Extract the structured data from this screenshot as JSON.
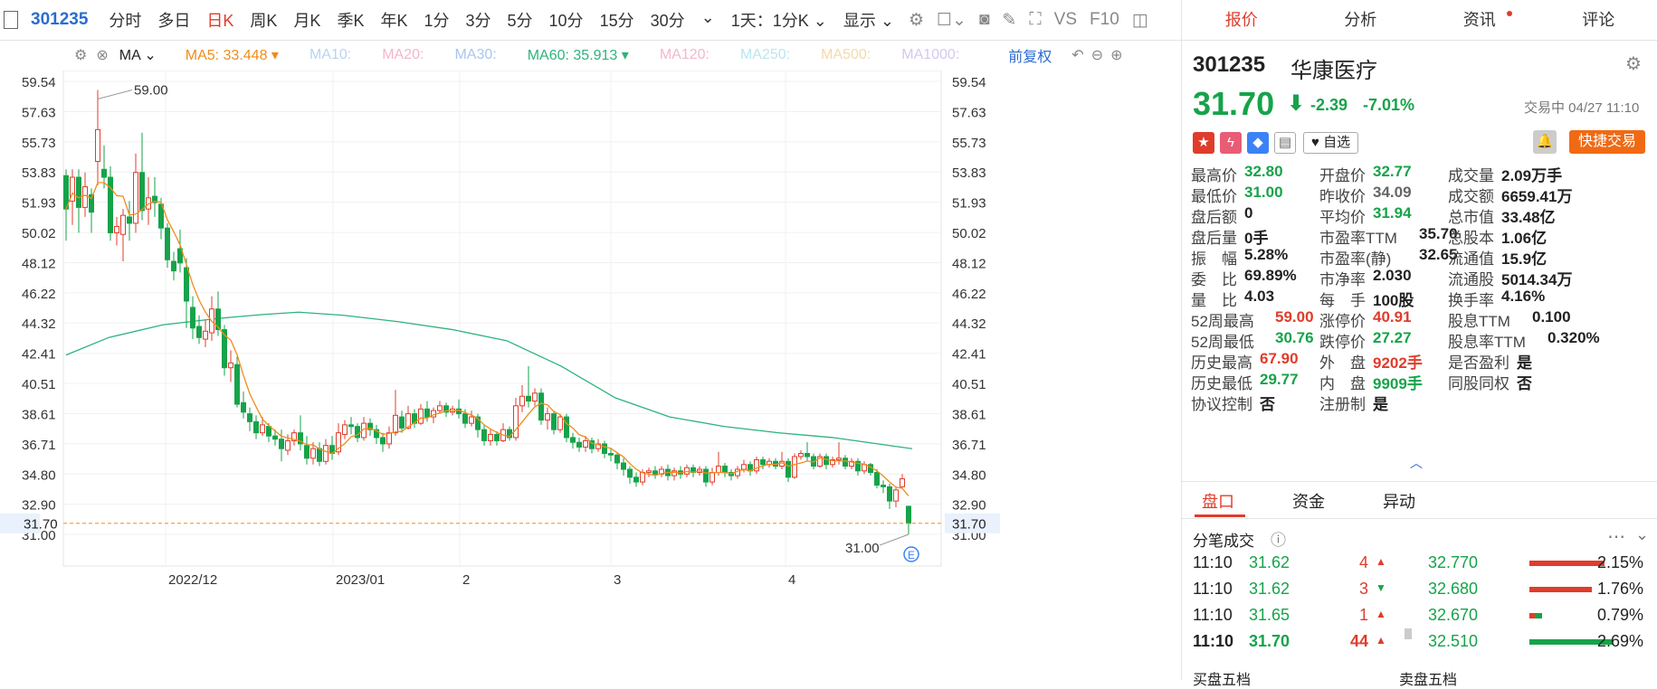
{
  "toolbar": {
    "code": "301235",
    "periods": [
      "分时",
      "多日",
      "日K",
      "周K",
      "月K",
      "季K",
      "年K",
      "1分",
      "3分",
      "5分",
      "10分",
      "15分",
      "30分"
    ],
    "active_period": "日K",
    "compare": "1天：1分K",
    "display": "显示",
    "vs": "VS",
    "f10": "F10"
  },
  "ma_row": {
    "title": "MA",
    "ma5": "MA5: 33.448",
    "ma10": "MA10:",
    "ma20": "MA20:",
    "ma30": "MA30:",
    "ma60": "MA60: 35.913",
    "ma120": "MA120:",
    "ma250": "MA250:",
    "ma500": "MA500:",
    "ma1000": "MA1000:",
    "adjust": "前复权",
    "colors": {
      "ma5": "#f08c1a",
      "ma60": "#2db37c",
      "faded": "#f4b6c8"
    }
  },
  "chart_data": {
    "type": "candlestick",
    "y_ticks": [
      "59.54",
      "57.63",
      "55.73",
      "53.83",
      "51.93",
      "50.02",
      "48.12",
      "46.22",
      "44.32",
      "42.41",
      "40.51",
      "38.61",
      "36.71",
      "34.80",
      "32.90",
      "31.00"
    ],
    "ylim": [
      31.0,
      59.54
    ],
    "x_labels": [
      "2022/12",
      "2023/01",
      "2",
      "3",
      "4"
    ],
    "current_price": "31.70",
    "high_marker": "59.00",
    "low_marker": "31.00",
    "colors": {
      "up": "#e03c2b",
      "down": "#16a34a",
      "ma5": "#f08c1a",
      "ma60": "#2db37c"
    }
  },
  "panel": {
    "tabs": [
      "报价",
      "分析",
      "资讯",
      "评论"
    ],
    "code": "301235",
    "name": "华康医疗",
    "price": "31.70",
    "change": "-2.39",
    "change_pct": "-7.01%",
    "status": "交易中 04/27 11:10",
    "watch": "自选",
    "quick_trade": "快捷交易",
    "stats": [
      [
        [
          "最高价",
          "32.80",
          "green"
        ],
        [
          "开盘价",
          "32.77",
          "green"
        ],
        [
          "成交量",
          "2.09万手",
          ""
        ]
      ],
      [
        [
          "最低价",
          "31.00",
          "green"
        ],
        [
          "昨收价",
          "34.09",
          "gray"
        ],
        [
          "成交额",
          "6659.41万",
          ""
        ]
      ],
      [
        [
          "盘后额",
          "0",
          ""
        ],
        [
          "平均价",
          "31.94",
          "green"
        ],
        [
          "总市值",
          "33.48亿",
          ""
        ]
      ],
      [
        [
          "盘后量",
          "0手",
          ""
        ],
        [
          "市盈率TTM",
          "35.70",
          ""
        ],
        [
          "总股本",
          "1.06亿",
          ""
        ]
      ],
      [
        [
          "振　幅",
          "5.28%",
          ""
        ],
        [
          "市盈率(静)",
          "32.65",
          ""
        ],
        [
          "流通值",
          "15.9亿",
          ""
        ]
      ],
      [
        [
          "委　比",
          "69.89%",
          ""
        ],
        [
          "市净率",
          "2.030",
          ""
        ],
        [
          "流通股",
          "5014.34万",
          ""
        ]
      ],
      [
        [
          "量　比",
          "4.03",
          ""
        ],
        [
          "每　手",
          "100股",
          ""
        ],
        [
          "换手率",
          "4.16%",
          ""
        ]
      ],
      [
        [
          "52周最高",
          "59.00",
          "red"
        ],
        [
          "涨停价",
          "40.91",
          "red"
        ],
        [
          "股息TTM",
          "0.100",
          ""
        ]
      ],
      [
        [
          "52周最低",
          "30.76",
          "green"
        ],
        [
          "跌停价",
          "27.27",
          "green"
        ],
        [
          "股息率TTM",
          "0.320%",
          ""
        ]
      ],
      [
        [
          "历史最高",
          "67.90",
          "red"
        ],
        [
          "外　盘",
          "9202手",
          "red"
        ],
        [
          "是否盈利",
          "是",
          ""
        ]
      ],
      [
        [
          "历史最低",
          "29.77",
          "green"
        ],
        [
          "内　盘",
          "9909手",
          "green"
        ],
        [
          "同股同权",
          "否",
          ""
        ]
      ],
      [
        [
          "协议控制",
          "否",
          ""
        ],
        [
          "注册制",
          "是",
          ""
        ],
        [
          "",
          "",
          " "
        ]
      ]
    ],
    "section_tabs": [
      "盘口",
      "资金",
      "异动"
    ],
    "trades_title": "分笔成交",
    "trades": [
      [
        "11:10",
        "31.62",
        "4",
        "up"
      ],
      [
        "11:10",
        "31.62",
        "3",
        "down"
      ],
      [
        "11:10",
        "31.65",
        "1",
        "up"
      ],
      [
        "11:10",
        "31.70",
        "44",
        "up"
      ]
    ],
    "levels": [
      [
        "32.770",
        "2.15%",
        "red",
        0.9
      ],
      [
        "32.680",
        "1.76%",
        "red",
        0.75
      ],
      [
        "32.670",
        "0.79%",
        "mix",
        0.12
      ],
      [
        "32.510",
        "2.69%",
        "green",
        1.0
      ]
    ],
    "bottom_labels": [
      "买盘五档",
      "卖盘五档"
    ]
  }
}
